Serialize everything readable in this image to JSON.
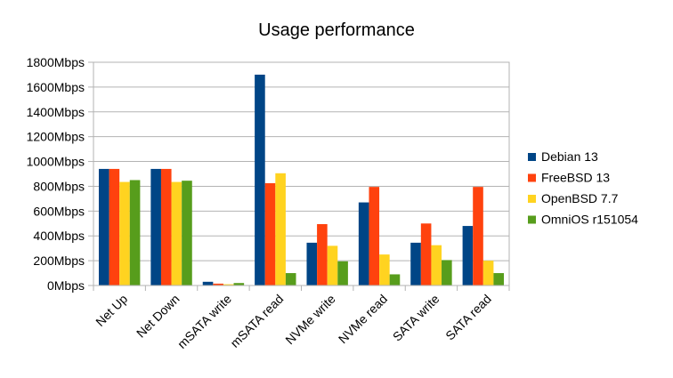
{
  "chart_data": {
    "type": "bar",
    "title": "Usage performance",
    "xlabel": "",
    "ylabel": "",
    "ylim": [
      0,
      1800
    ],
    "yticks": [
      "0Mbps",
      "200Mbps",
      "400Mbps",
      "600Mbps",
      "800Mbps",
      "1000Mbps",
      "1200Mbps",
      "1400Mbps",
      "1600Mbps",
      "1800Mbps"
    ],
    "categories": [
      "Net Up",
      "Net Down",
      "mSATA write",
      "mSATA read",
      "NVMe write",
      "NVMe read",
      "SATA write",
      "SATA read"
    ],
    "series": [
      {
        "name": "Debian 13",
        "color": "#004586",
        "values": [
          940,
          940,
          30,
          1700,
          345,
          670,
          345,
          480
        ]
      },
      {
        "name": "FreeBSD 13",
        "color": "#ff420e",
        "values": [
          940,
          940,
          15,
          825,
          495,
          795,
          500,
          795
        ]
      },
      {
        "name": "OpenBSD 7.7",
        "color": "#ffd320",
        "values": [
          835,
          835,
          10,
          905,
          320,
          250,
          325,
          200
        ]
      },
      {
        "name": "OmniOS r151054",
        "color": "#579d1c",
        "values": [
          850,
          845,
          20,
          100,
          195,
          90,
          205,
          100
        ]
      }
    ],
    "grid": true,
    "legend": "right"
  }
}
